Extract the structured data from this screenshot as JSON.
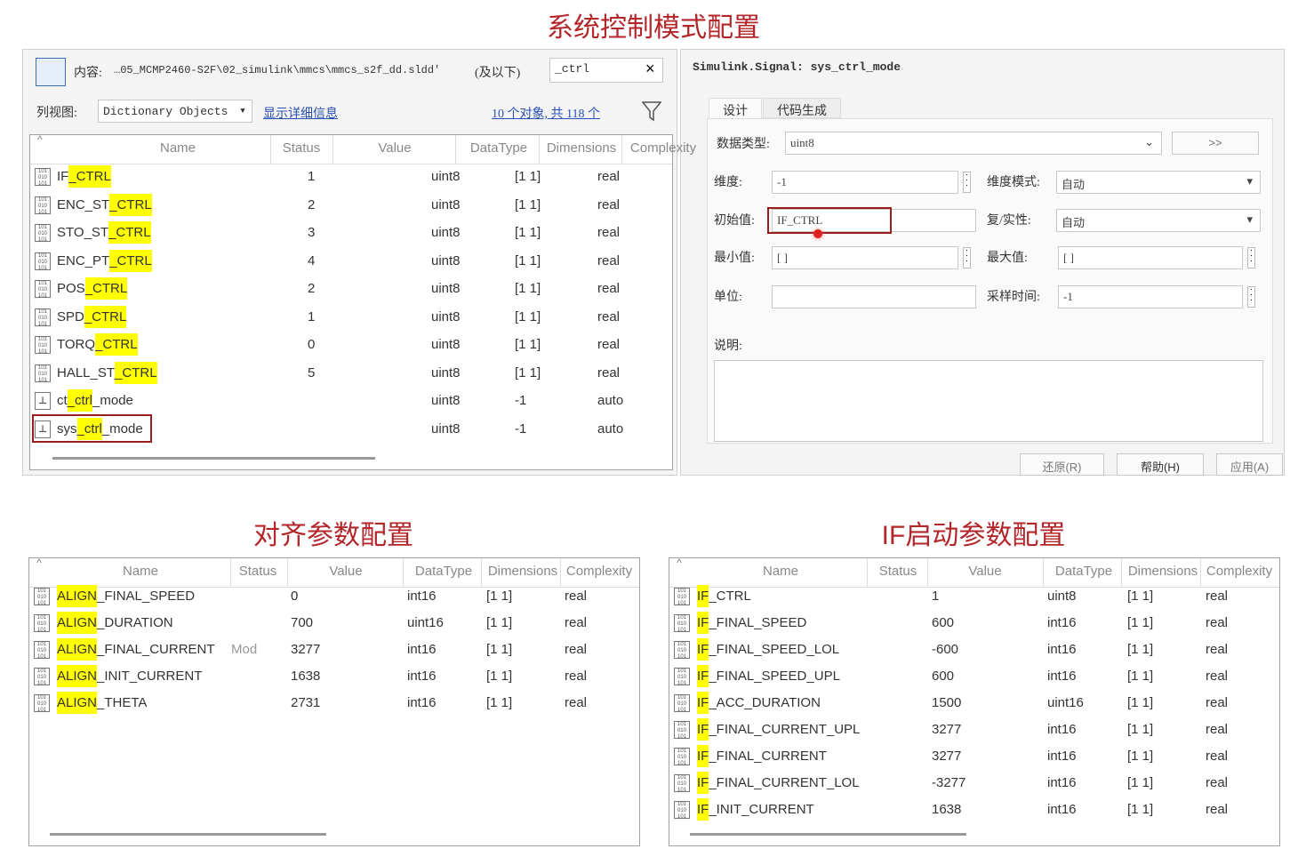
{
  "titles": {
    "top": "系统控制模式配置",
    "align": "对齐参数配置",
    "if": "IF启动参数配置"
  },
  "browser": {
    "content_label": "内容:",
    "path": "…05_MCMP2460-S2F\\02_simulink\\mmcs\\mmcs_s2f_dd.sldd'",
    "scope": "(及以下)",
    "search": "_ctrl",
    "clear": "×",
    "view_label": "列视图:",
    "view": "Dictionary Objects",
    "details_link": "显示详细信息",
    "count_link": "10 个对象, 共 118 个"
  },
  "top_table": {
    "columns": [
      "Name",
      "Status",
      "Value",
      "DataType",
      "Dimensions",
      "Complexity"
    ],
    "rows": [
      {
        "kind": "parameter",
        "name": [
          {
            "text": "IF"
          },
          {
            "text": "_CTRL",
            "highlight": true
          }
        ],
        "value": "1",
        "datatype": "uint8",
        "dimensions": "[1 1]",
        "complexity": "real"
      },
      {
        "kind": "parameter",
        "name": [
          {
            "text": "ENC_ST"
          },
          {
            "text": "_CTRL",
            "highlight": true
          }
        ],
        "value": "2",
        "datatype": "uint8",
        "dimensions": "[1 1]",
        "complexity": "real"
      },
      {
        "kind": "parameter",
        "name": [
          {
            "text": "STO_ST"
          },
          {
            "text": "_CTRL",
            "highlight": true
          }
        ],
        "value": "3",
        "datatype": "uint8",
        "dimensions": "[1 1]",
        "complexity": "real"
      },
      {
        "kind": "parameter",
        "name": [
          {
            "text": "ENC_PT"
          },
          {
            "text": "_CTRL",
            "highlight": true
          }
        ],
        "value": "4",
        "datatype": "uint8",
        "dimensions": "[1 1]",
        "complexity": "real"
      },
      {
        "kind": "parameter",
        "name": [
          {
            "text": "POS"
          },
          {
            "text": "_CTRL",
            "highlight": true
          }
        ],
        "value": "2",
        "datatype": "uint8",
        "dimensions": "[1 1]",
        "complexity": "real"
      },
      {
        "kind": "parameter",
        "name": [
          {
            "text": "SPD"
          },
          {
            "text": "_CTRL",
            "highlight": true
          }
        ],
        "value": "1",
        "datatype": "uint8",
        "dimensions": "[1 1]",
        "complexity": "real"
      },
      {
        "kind": "parameter",
        "name": [
          {
            "text": "TORQ"
          },
          {
            "text": "_CTRL",
            "highlight": true
          }
        ],
        "value": "0",
        "datatype": "uint8",
        "dimensions": "[1 1]",
        "complexity": "real"
      },
      {
        "kind": "parameter",
        "name": [
          {
            "text": "HALL_ST"
          },
          {
            "text": "_CTRL",
            "highlight": true
          }
        ],
        "value": "5",
        "datatype": "uint8",
        "dimensions": "[1 1]",
        "complexity": "real"
      },
      {
        "kind": "signal",
        "name": [
          {
            "text": "ct"
          },
          {
            "text": "_ctrl",
            "highlight": true
          },
          {
            "text": "_mode"
          }
        ],
        "datatype": "uint8",
        "dimensions": "-1",
        "complexity": "auto"
      },
      {
        "kind": "signal",
        "selected": true,
        "name": [
          {
            "text": "sys"
          },
          {
            "text": "_ctrl",
            "highlight": true
          },
          {
            "text": "_mode"
          }
        ],
        "datatype": "uint8",
        "dimensions": "-1",
        "complexity": "auto"
      }
    ]
  },
  "signal_panel": {
    "header": "Simulink.Signal: sys_ctrl_mode",
    "tabs": [
      "设计",
      "代码生成"
    ],
    "data_type_label": "数据类型:",
    "data_type": "uint8",
    "more": ">>",
    "dims_label": "维度:",
    "dims": "-1",
    "dims_mode_label": "维度模式:",
    "dims_mode": "自动",
    "init_label": "初始值:",
    "init": "IF_CTRL",
    "complexity_label": "复/实性:",
    "complexity": "自动",
    "min_label": "最小值:",
    "min": "[ ]",
    "max_label": "最大值:",
    "max": "[ ]",
    "unit_label": "单位:",
    "sample_label": "采样时间:",
    "sample": "-1",
    "desc_label": "说明:",
    "buttons": [
      "还原(R)",
      "帮助(H)",
      "应用(A)"
    ]
  },
  "align_table": {
    "columns": [
      "Name",
      "Status",
      "Value",
      "DataType",
      "Dimensions",
      "Complexity"
    ],
    "rows": [
      {
        "kind": "parameter",
        "name": [
          {
            "text": "ALIGN",
            "highlight": true
          },
          {
            "text": "_FINAL_SPEED"
          }
        ],
        "value": "0",
        "datatype": "int16",
        "dimensions": "[1 1]",
        "complexity": "real"
      },
      {
        "kind": "parameter",
        "name": [
          {
            "text": "ALIGN",
            "highlight": true
          },
          {
            "text": "_DURATION"
          }
        ],
        "value": "700",
        "datatype": "uint16",
        "dimensions": "[1 1]",
        "complexity": "real"
      },
      {
        "kind": "parameter",
        "name": [
          {
            "text": "ALIGN",
            "highlight": true
          },
          {
            "text": "_FINAL_CURRENT"
          }
        ],
        "status": "Mod",
        "value": "3277",
        "datatype": "int16",
        "dimensions": "[1 1]",
        "complexity": "real"
      },
      {
        "kind": "parameter",
        "name": [
          {
            "text": "ALIGN",
            "highlight": true
          },
          {
            "text": "_INIT_CURRENT"
          }
        ],
        "value": "1638",
        "datatype": "int16",
        "dimensions": "[1 1]",
        "complexity": "real"
      },
      {
        "kind": "parameter",
        "name": [
          {
            "text": "ALIGN",
            "highlight": true
          },
          {
            "text": "_THETA"
          }
        ],
        "value": "2731",
        "datatype": "int16",
        "dimensions": "[1 1]",
        "complexity": "real"
      }
    ]
  },
  "if_table": {
    "columns": [
      "Name",
      "Status",
      "Value",
      "DataType",
      "Dimensions",
      "Complexity"
    ],
    "rows": [
      {
        "kind": "parameter",
        "name": [
          {
            "text": "IF",
            "highlight": true
          },
          {
            "text": "_CTRL"
          }
        ],
        "value": "1",
        "datatype": "uint8",
        "dimensions": "[1 1]",
        "complexity": "real"
      },
      {
        "kind": "parameter",
        "name": [
          {
            "text": "IF",
            "highlight": true
          },
          {
            "text": "_FINAL_SPEED"
          }
        ],
        "value": "600",
        "datatype": "int16",
        "dimensions": "[1 1]",
        "complexity": "real"
      },
      {
        "kind": "parameter",
        "name": [
          {
            "text": "IF",
            "highlight": true
          },
          {
            "text": "_FINAL_SPEED_LOL"
          }
        ],
        "value": "-600",
        "datatype": "int16",
        "dimensions": "[1 1]",
        "complexity": "real"
      },
      {
        "kind": "parameter",
        "name": [
          {
            "text": "IF",
            "highlight": true
          },
          {
            "text": "_FINAL_SPEED_UPL"
          }
        ],
        "value": "600",
        "datatype": "int16",
        "dimensions": "[1 1]",
        "complexity": "real"
      },
      {
        "kind": "parameter",
        "name": [
          {
            "text": "IF",
            "highlight": true
          },
          {
            "text": "_ACC_DURATION"
          }
        ],
        "value": "1500",
        "datatype": "uint16",
        "dimensions": "[1 1]",
        "complexity": "real"
      },
      {
        "kind": "parameter",
        "name": [
          {
            "text": "IF",
            "highlight": true
          },
          {
            "text": "_FINAL_CURRENT_UPL"
          }
        ],
        "value": "3277",
        "datatype": "int16",
        "dimensions": "[1 1]",
        "complexity": "real"
      },
      {
        "kind": "parameter",
        "name": [
          {
            "text": "IF",
            "highlight": true
          },
          {
            "text": "_FINAL_CURRENT"
          }
        ],
        "value": "3277",
        "datatype": "int16",
        "dimensions": "[1 1]",
        "complexity": "real"
      },
      {
        "kind": "parameter",
        "name": [
          {
            "text": "IF",
            "highlight": true
          },
          {
            "text": "_FINAL_CURRENT_LOL"
          }
        ],
        "value": "-3277",
        "datatype": "int16",
        "dimensions": "[1 1]",
        "complexity": "real"
      },
      {
        "kind": "parameter",
        "name": [
          {
            "text": "IF",
            "highlight": true
          },
          {
            "text": "_INIT_CURRENT"
          }
        ],
        "value": "1638",
        "datatype": "int16",
        "dimensions": "[1 1]",
        "complexity": "real"
      }
    ]
  }
}
